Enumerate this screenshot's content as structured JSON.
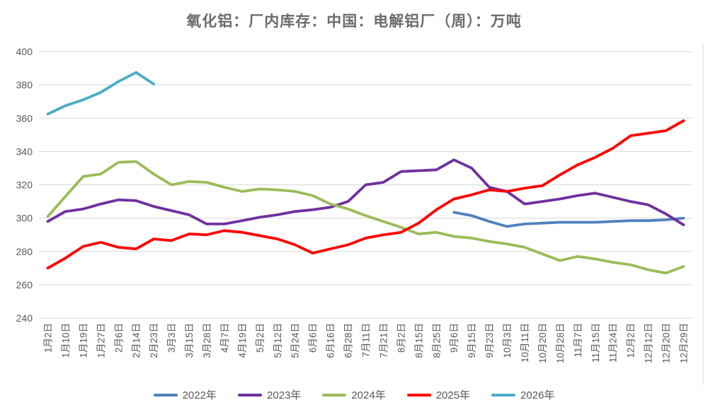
{
  "title": "氧化铝：厂内库存：中国：电解铝厂（周）：万吨",
  "chart_data": {
    "type": "line",
    "title": "氧化铝：厂内库存：中国：电解铝厂（周）：万吨",
    "xlabel": "",
    "ylabel": "",
    "ylim": [
      240,
      400
    ],
    "ystep": 20,
    "grid": true,
    "legend_position": "bottom",
    "x_labels_rotated": true,
    "categories": [
      "1月2日",
      "1月10日",
      "1月19日",
      "1月27日",
      "2月6日",
      "2月14日",
      "2月23日",
      "3月3日",
      "3月15日",
      "3月28日",
      "4月7日",
      "4月19日",
      "5月2日",
      "5月12日",
      "5月24日",
      "6月6日",
      "6月16日",
      "6月28日",
      "7月11日",
      "7月21日",
      "8月2日",
      "8月15日",
      "8月25日",
      "9月6日",
      "9月15日",
      "9月23日",
      "10月3日",
      "10月11日",
      "10月20日",
      "10月28日",
      "11月7日",
      "11月15日",
      "11月24日",
      "12月2日",
      "12月12日",
      "12月20日",
      "12月29日"
    ],
    "series": [
      {
        "name": "2022年",
        "color": "#4E81BD",
        "start_index": 23,
        "values": [
          303.5,
          301.5,
          298,
          295,
          296.5,
          297,
          297.5,
          297.5,
          297.5,
          298,
          298.5,
          298.5,
          299,
          300
        ]
      },
      {
        "name": "2023年",
        "color": "#7030A0",
        "start_index": 0,
        "values": [
          298,
          304,
          305.5,
          308.5,
          311,
          310.5,
          307,
          304.5,
          302,
          296.5,
          296.5,
          298.5,
          300.5,
          302,
          304,
          305,
          306.5,
          310,
          320,
          321.5,
          328,
          328.5,
          329,
          335,
          330,
          318.5,
          316,
          308.5,
          310,
          311.5,
          313.5,
          315,
          312.5,
          310,
          308,
          302.5,
          296
        ]
      },
      {
        "name": "2024年",
        "color": "#9BBB59",
        "start_index": 0,
        "values": [
          301,
          313,
          325,
          326.5,
          333.5,
          334,
          326.5,
          320,
          322,
          321.5,
          318.5,
          316,
          317.5,
          317,
          316,
          313.5,
          308.5,
          305.5,
          301.5,
          298,
          294.5,
          290.5,
          291.5,
          289,
          288,
          286,
          284.5,
          282.5,
          278.5,
          274.5,
          277,
          275.5,
          273.5,
          272,
          269,
          267,
          271
        ]
      },
      {
        "name": "2025年",
        "color": "#FF0000",
        "start_index": 0,
        "values": [
          270,
          276,
          283,
          285.5,
          282.5,
          281.5,
          287.5,
          286.5,
          290.5,
          290,
          292.5,
          291.5,
          289.5,
          287.5,
          284,
          279,
          281.5,
          284,
          288,
          290,
          291.5,
          297,
          305,
          311.5,
          314,
          317,
          316,
          318,
          319.5,
          326,
          332,
          336.5,
          342,
          349.5,
          351,
          352.5,
          358.5
        ]
      },
      {
        "name": "2026年",
        "color": "#4BACC6",
        "start_index": 0,
        "values": [
          362.5,
          367.5,
          371,
          375.5,
          382,
          387.5,
          380.5
        ]
      }
    ]
  },
  "colors": {
    "background": "#ffffff",
    "gridline": "#d9d9d9",
    "axis_text": "#595959",
    "title_text": "#6b6b6b"
  }
}
